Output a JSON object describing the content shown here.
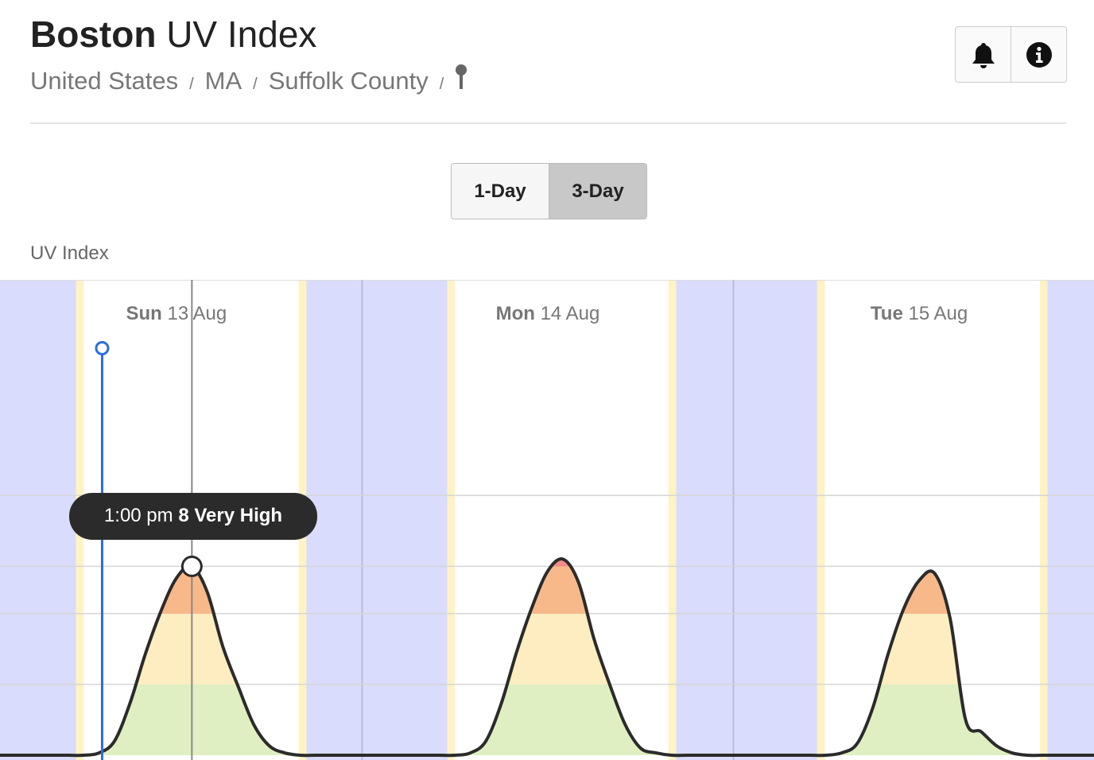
{
  "header": {
    "city": "Boston",
    "title": "UV Index",
    "breadcrumb": [
      "United States",
      "MA",
      "Suffolk County"
    ],
    "separator": "/"
  },
  "toggle": {
    "options": [
      "1-Day",
      "3-Day"
    ],
    "active": 1
  },
  "chart_data": {
    "type": "area",
    "y_label": "UV Index",
    "x": [
      0,
      1,
      2,
      3,
      4,
      5,
      6,
      7,
      8,
      9,
      10,
      11,
      12,
      13,
      14,
      15,
      16,
      17,
      18,
      19,
      20,
      21,
      22,
      23,
      24,
      25,
      26,
      27,
      28,
      29,
      30,
      31,
      32,
      33,
      34,
      35,
      36,
      37,
      38,
      39,
      40,
      41,
      42,
      43,
      44,
      45,
      46,
      47,
      48,
      49,
      50,
      51,
      52,
      53,
      54,
      55,
      56,
      57,
      58,
      59,
      60,
      61,
      62,
      63,
      64,
      65,
      66,
      67,
      68,
      69,
      70,
      71,
      72
    ],
    "series": [
      {
        "color": "#2b2b2b",
        "values": [
          0,
          0,
          0,
          0,
          0,
          0,
          0,
          0.1,
          0.6,
          2.2,
          4.3,
          6.1,
          7.5,
          8,
          6.9,
          4.6,
          2.9,
          1.3,
          0.4,
          0.1,
          0,
          0,
          0,
          0,
          0,
          0,
          0,
          0,
          0,
          0,
          0,
          0.1,
          0.6,
          2.2,
          4.4,
          6.3,
          7.8,
          8.3,
          7.3,
          4.9,
          3.0,
          1.3,
          0.3,
          0.1,
          0,
          0,
          0,
          0,
          0,
          0,
          0,
          0,
          0,
          0,
          0,
          0.1,
          0.5,
          2.0,
          4.3,
          6.2,
          7.4,
          7.7,
          5.8,
          1.5,
          1.0,
          0.4,
          0.1,
          0,
          0,
          0,
          0,
          0,
          0
        ]
      }
    ],
    "xlim": [
      0.6,
      71.3
    ],
    "ylim": [
      0,
      20
    ],
    "xticks": [
      24,
      48
    ],
    "bands": [
      {
        "max": 3,
        "color": "#dfefc2"
      },
      {
        "max": 6,
        "color": "#fdedc0"
      },
      {
        "max": 8,
        "color": "#f8b98a"
      },
      {
        "max": 11,
        "color": "#f28c8c"
      }
    ],
    "days": [
      {
        "weekday": "Sun",
        "date": "13 Aug",
        "dawn": 5.5,
        "sunrise": 6.0,
        "sunset": 19.9,
        "dusk": 20.4
      },
      {
        "weekday": "Mon",
        "date": "14 Aug",
        "dawn": 29.5,
        "sunrise": 30.0,
        "sunset": 43.8,
        "dusk": 44.3
      },
      {
        "weekday": "Tue",
        "date": "15 Aug",
        "dawn": 53.4,
        "sunrise": 53.9,
        "sunset": 67.8,
        "dusk": 68.3
      }
    ],
    "night_color": "#d9dcfc",
    "twilight_color": "#fff2c4",
    "now": 7.2,
    "tooltip": {
      "time": "1:00 pm",
      "value": 8,
      "level": "Very High",
      "index": 13
    }
  }
}
